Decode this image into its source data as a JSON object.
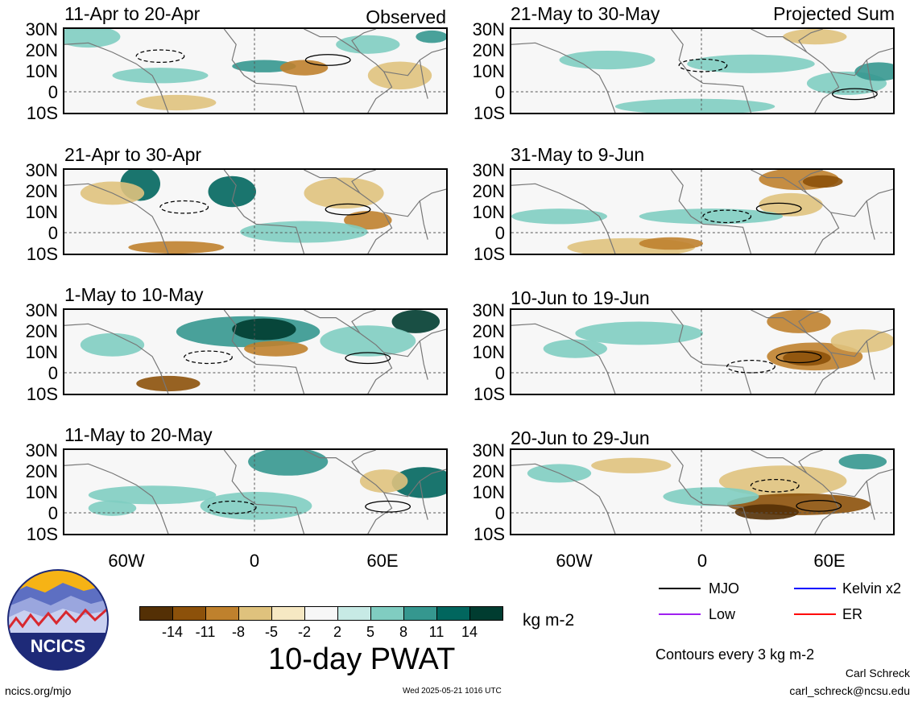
{
  "observed_label": "Observed",
  "projected_label": "Projected Sum",
  "lat_labels": [
    "30N",
    "20N",
    "10N",
    "0",
    "10S"
  ],
  "lon_labels": [
    "60W",
    "0",
    "60E"
  ],
  "panels_left": [
    {
      "title": "11-Apr to 20-Apr"
    },
    {
      "title": "21-Apr to 30-Apr"
    },
    {
      "title": "1-May to 10-May"
    },
    {
      "title": "11-May to 20-May"
    }
  ],
  "panels_right": [
    {
      "title": "21-May to 30-May"
    },
    {
      "title": "31-May to 9-Jun"
    },
    {
      "title": "10-Jun to 19-Jun"
    },
    {
      "title": "20-Jun to 29-Jun"
    }
  ],
  "colorbar": {
    "ticks": [
      "-14",
      "-11",
      "-8",
      "-5",
      "-2",
      "2",
      "5",
      "8",
      "11",
      "14"
    ],
    "colors": [
      "#543005",
      "#8c510a",
      "#bf812d",
      "#dfc27d",
      "#f6e8c3",
      "#f7f7f7",
      "#c7eae5",
      "#80cdc1",
      "#35978f",
      "#01665e",
      "#003c30"
    ],
    "units": "kg m-2",
    "title": "10-day PWAT"
  },
  "legend": {
    "items": [
      {
        "label": "MJO",
        "color": "#000000"
      },
      {
        "label": "Kelvin x2",
        "color": "#0000ff"
      },
      {
        "label": "Low",
        "color": "#a020f0"
      },
      {
        "label": "ER",
        "color": "#ff0000"
      }
    ],
    "contours_note": "Contours every 3 kg m-2"
  },
  "logo_text": "NCICS",
  "footer": {
    "left": "ncics.org/mjo",
    "center": "Wed 2025-05-21 1016 UTC",
    "author": "Carl Schreck",
    "email": "carl_schreck@ncsu.edu"
  }
}
